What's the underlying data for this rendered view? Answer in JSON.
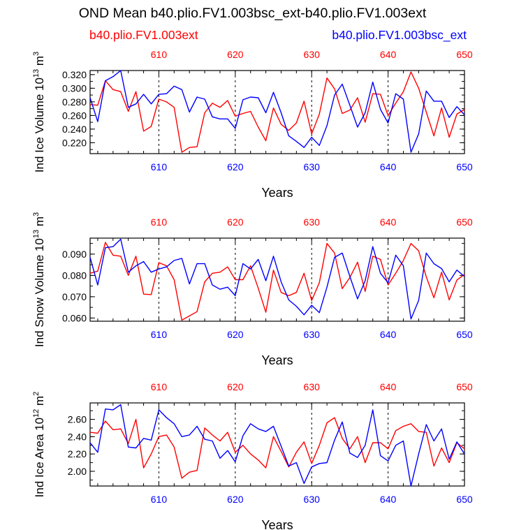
{
  "title": "OND Mean b40.plio.FV1.003bsc_ext-b40.plio.FV1.003ext",
  "legend": {
    "red_label": "b40.plio.FV1.003ext",
    "blue_label": "b40.plio.FV1.003bsc_ext"
  },
  "colors": {
    "red": "#ff0000",
    "blue": "#0000ff",
    "axis": "#000000"
  },
  "chart_data": [
    {
      "type": "line",
      "ylabel": "Ind Ice Volume 10",
      "ylabel_exp": "13",
      "ylabel_unit": "m",
      "ylabel_unit_exp": "3",
      "xlabel": "Years",
      "xlim": [
        601,
        650
      ],
      "ylim": [
        0.204,
        0.326
      ],
      "yticks": [
        0.22,
        0.24,
        0.26,
        0.28,
        0.3,
        0.32
      ],
      "ytick_labels": [
        "0.220",
        "0.240",
        "0.260",
        "0.280",
        "0.300",
        "0.320"
      ],
      "xticks": [
        610,
        620,
        630,
        640,
        650
      ],
      "xtick_labels": [
        "610",
        "620",
        "630",
        "640",
        "650"
      ],
      "x": [
        601,
        602,
        603,
        604,
        605,
        606,
        607,
        608,
        609,
        610,
        611,
        612,
        613,
        614,
        615,
        616,
        617,
        618,
        619,
        620,
        621,
        622,
        623,
        624,
        625,
        626,
        627,
        628,
        629,
        630,
        631,
        632,
        633,
        634,
        635,
        636,
        637,
        638,
        639,
        640,
        641,
        642,
        643,
        644,
        645,
        646,
        647,
        648,
        649,
        650
      ],
      "series": [
        {
          "name": "b40.plio.FV1.003ext",
          "color": "#ff0000",
          "values": [
            0.276,
            0.275,
            0.311,
            0.298,
            0.295,
            0.266,
            0.295,
            0.237,
            0.244,
            0.284,
            0.28,
            0.272,
            0.206,
            0.213,
            0.214,
            0.264,
            0.278,
            0.272,
            0.282,
            0.259,
            0.263,
            0.266,
            0.243,
            0.223,
            0.271,
            0.247,
            0.238,
            0.249,
            0.281,
            0.233,
            0.262,
            0.315,
            0.299,
            0.263,
            0.268,
            0.286,
            0.25,
            0.292,
            0.291,
            0.26,
            0.278,
            0.295,
            0.324,
            0.3,
            0.265,
            0.23,
            0.271,
            0.228,
            0.262,
            0.269
          ]
        },
        {
          "name": "b40.plio.FV1.003bsc_ext",
          "color": "#0000ff",
          "values": [
            0.286,
            0.251,
            0.311,
            0.317,
            0.326,
            0.272,
            0.277,
            0.291,
            0.277,
            0.291,
            0.292,
            0.303,
            0.298,
            0.265,
            0.287,
            0.284,
            0.258,
            0.255,
            0.255,
            0.241,
            0.283,
            0.287,
            0.286,
            0.264,
            0.294,
            0.264,
            0.23,
            0.222,
            0.213,
            0.228,
            0.216,
            0.245,
            0.29,
            0.306,
            0.275,
            0.243,
            0.264,
            0.309,
            0.269,
            0.249,
            0.292,
            0.284,
            0.206,
            0.233,
            0.296,
            0.281,
            0.281,
            0.257,
            0.273,
            0.261
          ]
        }
      ]
    },
    {
      "type": "line",
      "ylabel": "Ind Snow Volume 10",
      "ylabel_exp": "13",
      "ylabel_unit": "m",
      "ylabel_unit_exp": "3",
      "xlabel": "Years",
      "xlim": [
        601,
        650
      ],
      "ylim": [
        0.0585,
        0.0975
      ],
      "yticks": [
        0.06,
        0.07,
        0.08,
        0.09
      ],
      "ytick_labels": [
        "0.060",
        "0.070",
        "0.080",
        "0.090"
      ],
      "xticks": [
        610,
        620,
        630,
        640,
        650
      ],
      "xtick_labels": [
        "610",
        "620",
        "630",
        "640",
        "650"
      ],
      "x": [
        601,
        602,
        603,
        604,
        605,
        606,
        607,
        608,
        609,
        610,
        611,
        612,
        613,
        614,
        615,
        616,
        617,
        618,
        619,
        620,
        621,
        622,
        623,
        624,
        625,
        626,
        627,
        628,
        629,
        630,
        631,
        632,
        633,
        634,
        635,
        636,
        637,
        638,
        639,
        640,
        641,
        642,
        643,
        644,
        645,
        646,
        647,
        648,
        649,
        650
      ],
      "series": [
        {
          "name": "b40.plio.FV1.003ext",
          "color": "#ff0000",
          "values": [
            0.081,
            0.082,
            0.0955,
            0.0895,
            0.089,
            0.08,
            0.089,
            0.0712,
            0.071,
            0.086,
            0.0845,
            0.078,
            0.059,
            0.061,
            0.063,
            0.077,
            0.081,
            0.0815,
            0.084,
            0.078,
            0.078,
            0.0845,
            0.074,
            0.0627,
            0.0825,
            0.072,
            0.0705,
            0.072,
            0.081,
            0.0682,
            0.0766,
            0.095,
            0.0905,
            0.0738,
            0.079,
            0.0862,
            0.0725,
            0.089,
            0.0875,
            0.0755,
            0.081,
            0.087,
            0.095,
            0.0915,
            0.0793,
            0.0695,
            0.0815,
            0.0685,
            0.0778,
            0.0805
          ]
        },
        {
          "name": "b40.plio.FV1.003bsc_ext",
          "color": "#0000ff",
          "values": [
            0.0885,
            0.0755,
            0.093,
            0.0935,
            0.097,
            0.0815,
            0.0845,
            0.0865,
            0.0815,
            0.083,
            0.084,
            0.087,
            0.088,
            0.076,
            0.0855,
            0.0855,
            0.0755,
            0.0735,
            0.0745,
            0.0705,
            0.0855,
            0.083,
            0.0875,
            0.0775,
            0.089,
            0.077,
            0.0685,
            0.0655,
            0.0615,
            0.066,
            0.0625,
            0.0745,
            0.0885,
            0.0905,
            0.0795,
            0.069,
            0.0775,
            0.0935,
            0.081,
            0.0765,
            0.0895,
            0.0845,
            0.0595,
            0.0683,
            0.0905,
            0.0855,
            0.0832,
            0.077,
            0.0825,
            0.0795
          ]
        }
      ]
    },
    {
      "type": "line",
      "ylabel": "Ind Ice Area 10",
      "ylabel_exp": "12",
      "ylabel_unit": "m",
      "ylabel_unit_exp": "2",
      "xlabel": "Years",
      "xlim": [
        601,
        650
      ],
      "ylim": [
        1.83,
        2.79
      ],
      "yticks": [
        2.0,
        2.2,
        2.4,
        2.6
      ],
      "ytick_labels": [
        "2.00",
        "2.20",
        "2.40",
        "2.60"
      ],
      "xticks": [
        610,
        620,
        630,
        640,
        650
      ],
      "xtick_labels": [
        "610",
        "620",
        "630",
        "640",
        "650"
      ],
      "x": [
        601,
        602,
        603,
        604,
        605,
        606,
        607,
        608,
        609,
        610,
        611,
        612,
        613,
        614,
        615,
        616,
        617,
        618,
        619,
        620,
        621,
        622,
        623,
        624,
        625,
        626,
        627,
        628,
        629,
        630,
        631,
        632,
        633,
        634,
        635,
        636,
        637,
        638,
        639,
        640,
        641,
        642,
        643,
        644,
        645,
        646,
        647,
        648,
        649,
        650
      ],
      "series": [
        {
          "name": "b40.plio.FV1.003ext",
          "color": "#ff0000",
          "values": [
            2.45,
            2.44,
            2.58,
            2.48,
            2.49,
            2.32,
            2.6,
            2.04,
            2.2,
            2.4,
            2.42,
            2.28,
            1.92,
            1.99,
            2.01,
            2.5,
            2.42,
            2.35,
            2.45,
            2.22,
            2.3,
            2.2,
            2.13,
            2.04,
            2.4,
            2.23,
            2.05,
            2.22,
            2.34,
            2.09,
            2.3,
            2.56,
            2.62,
            2.38,
            2.26,
            2.4,
            2.1,
            2.33,
            2.33,
            2.26,
            2.47,
            2.52,
            2.55,
            2.46,
            2.45,
            2.06,
            2.27,
            2.1,
            2.33,
            2.26
          ]
        },
        {
          "name": "b40.plio.FV1.003bsc_ext",
          "color": "#0000ff",
          "values": [
            2.33,
            2.22,
            2.72,
            2.71,
            2.77,
            2.28,
            2.27,
            2.38,
            2.36,
            2.71,
            2.62,
            2.55,
            2.4,
            2.42,
            2.52,
            2.37,
            2.35,
            2.15,
            2.24,
            2.11,
            2.41,
            2.55,
            2.49,
            2.46,
            2.52,
            2.29,
            2.06,
            2.1,
            1.86,
            2.05,
            2.09,
            2.1,
            2.36,
            2.57,
            2.21,
            2.16,
            2.3,
            2.71,
            2.18,
            2.12,
            2.3,
            2.35,
            1.83,
            2.2,
            2.54,
            2.35,
            2.49,
            2.14,
            2.34,
            2.2
          ]
        }
      ]
    }
  ]
}
